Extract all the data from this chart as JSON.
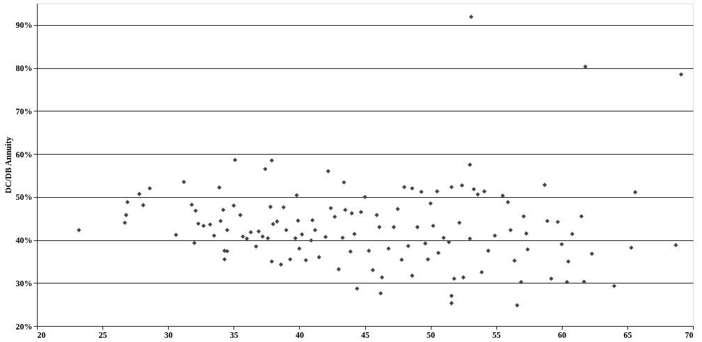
{
  "chart_data": {
    "type": "scatter",
    "ylabel": "DC/DB Annuity",
    "marker": "diamond",
    "grid": "y",
    "xlim": [
      20,
      70
    ],
    "xticks": [
      20,
      25,
      30,
      35,
      40,
      45,
      50,
      55,
      60,
      65,
      70
    ],
    "ylim": [
      20,
      95
    ],
    "yticks": [
      {
        "value": 20,
        "label": "20%"
      },
      {
        "value": 30,
        "label": "30%"
      },
      {
        "value": 40,
        "label": "40%"
      },
      {
        "value": 50,
        "label": "50%"
      },
      {
        "value": 60,
        "label": "60%"
      },
      {
        "value": 70,
        "label": "70%"
      },
      {
        "value": 80,
        "label": "80%"
      },
      {
        "value": 90,
        "label": "90%"
      }
    ],
    "series": [
      {
        "color": "#3e4a44",
        "x": [
          23.2,
          26.7,
          26.8,
          26.9,
          27.8,
          28.1,
          28.6,
          30.6,
          31.2,
          31.8,
          32,
          32.1,
          32.3,
          32.7,
          33.2,
          33.5,
          33.9,
          34,
          34.2,
          34.3,
          34.3,
          34.5,
          34.5,
          35,
          35.1,
          35.5,
          35.7,
          36,
          36.3,
          36.7,
          36.9,
          37.2,
          37.4,
          37.6,
          37.8,
          37.9,
          37.9,
          38,
          38.3,
          38.6,
          38.8,
          39,
          39.3,
          39.7,
          39.8,
          39.9,
          40,
          40.2,
          40.5,
          40.9,
          41,
          41.2,
          41.5,
          42,
          42.2,
          42.4,
          42.7,
          43,
          43.3,
          43.4,
          43.5,
          43.9,
          44,
          44.2,
          44.4,
          44.7,
          45,
          45.3,
          45.6,
          45.9,
          46.1,
          46.2,
          46.3,
          46.8,
          47.2,
          47.5,
          47.8,
          48,
          48.3,
          48.6,
          48.6,
          49,
          49.3,
          49.6,
          49.8,
          50,
          50.2,
          50.5,
          50.6,
          51,
          51.4,
          51.6,
          51.6,
          51.6,
          51.8,
          52.2,
          52.4,
          52.5,
          53,
          53,
          53.1,
          53.3,
          53.6,
          53.9,
          54.1,
          54.4,
          54.9,
          55.5,
          55.9,
          56.1,
          56.4,
          56.6,
          56.9,
          57.1,
          57.3,
          57.4,
          58.7,
          58.9,
          59.2,
          59.7,
          60,
          60.4,
          60.5,
          60.8,
          61.5,
          61.7,
          61.8,
          62.3,
          64,
          65.3,
          65.6,
          68.7,
          69.1
        ],
        "values": [
          42.3,
          44,
          45.8,
          48.8,
          50.7,
          48.1,
          52,
          41.2,
          53.5,
          48.2,
          39.3,
          46.8,
          43.8,
          43.3,
          43.6,
          41,
          52.2,
          44.4,
          47,
          37.5,
          35.5,
          37.4,
          42.3,
          48,
          58.6,
          45.8,
          40.8,
          40.3,
          41.8,
          38.5,
          42,
          40.8,
          56.5,
          40.4,
          47.7,
          58.5,
          35,
          43.7,
          44.3,
          34.3,
          47.6,
          42.3,
          35.5,
          40.4,
          50.4,
          44.5,
          38,
          41.3,
          35.3,
          39.9,
          44.6,
          42.3,
          36,
          40.7,
          56,
          47.4,
          45.4,
          33.2,
          40.5,
          53.4,
          47,
          37.3,
          46.2,
          41.4,
          28.7,
          46.5,
          50,
          37.5,
          33,
          45.8,
          43,
          27.6,
          31.3,
          38,
          43,
          47.2,
          35.4,
          52.3,
          38.6,
          31.7,
          52,
          43,
          51.2,
          39.2,
          35.5,
          48.5,
          43.3,
          51.3,
          37,
          40.5,
          39.5,
          27,
          25.3,
          52.3,
          31,
          44,
          52.7,
          31.3,
          40.3,
          57.5,
          91.9,
          51.8,
          50.6,
          32.5,
          51.3,
          37.5,
          41,
          50.3,
          48.8,
          42.3,
          35.2,
          24.8,
          30.2,
          45.5,
          41.5,
          37.8,
          52.8,
          44.4,
          31,
          44.2,
          39,
          30.2,
          35,
          41.4,
          45.5,
          30.3,
          80.3,
          36.8,
          29.3,
          38.2,
          51.1,
          38.8,
          78.5
        ]
      }
    ]
  }
}
